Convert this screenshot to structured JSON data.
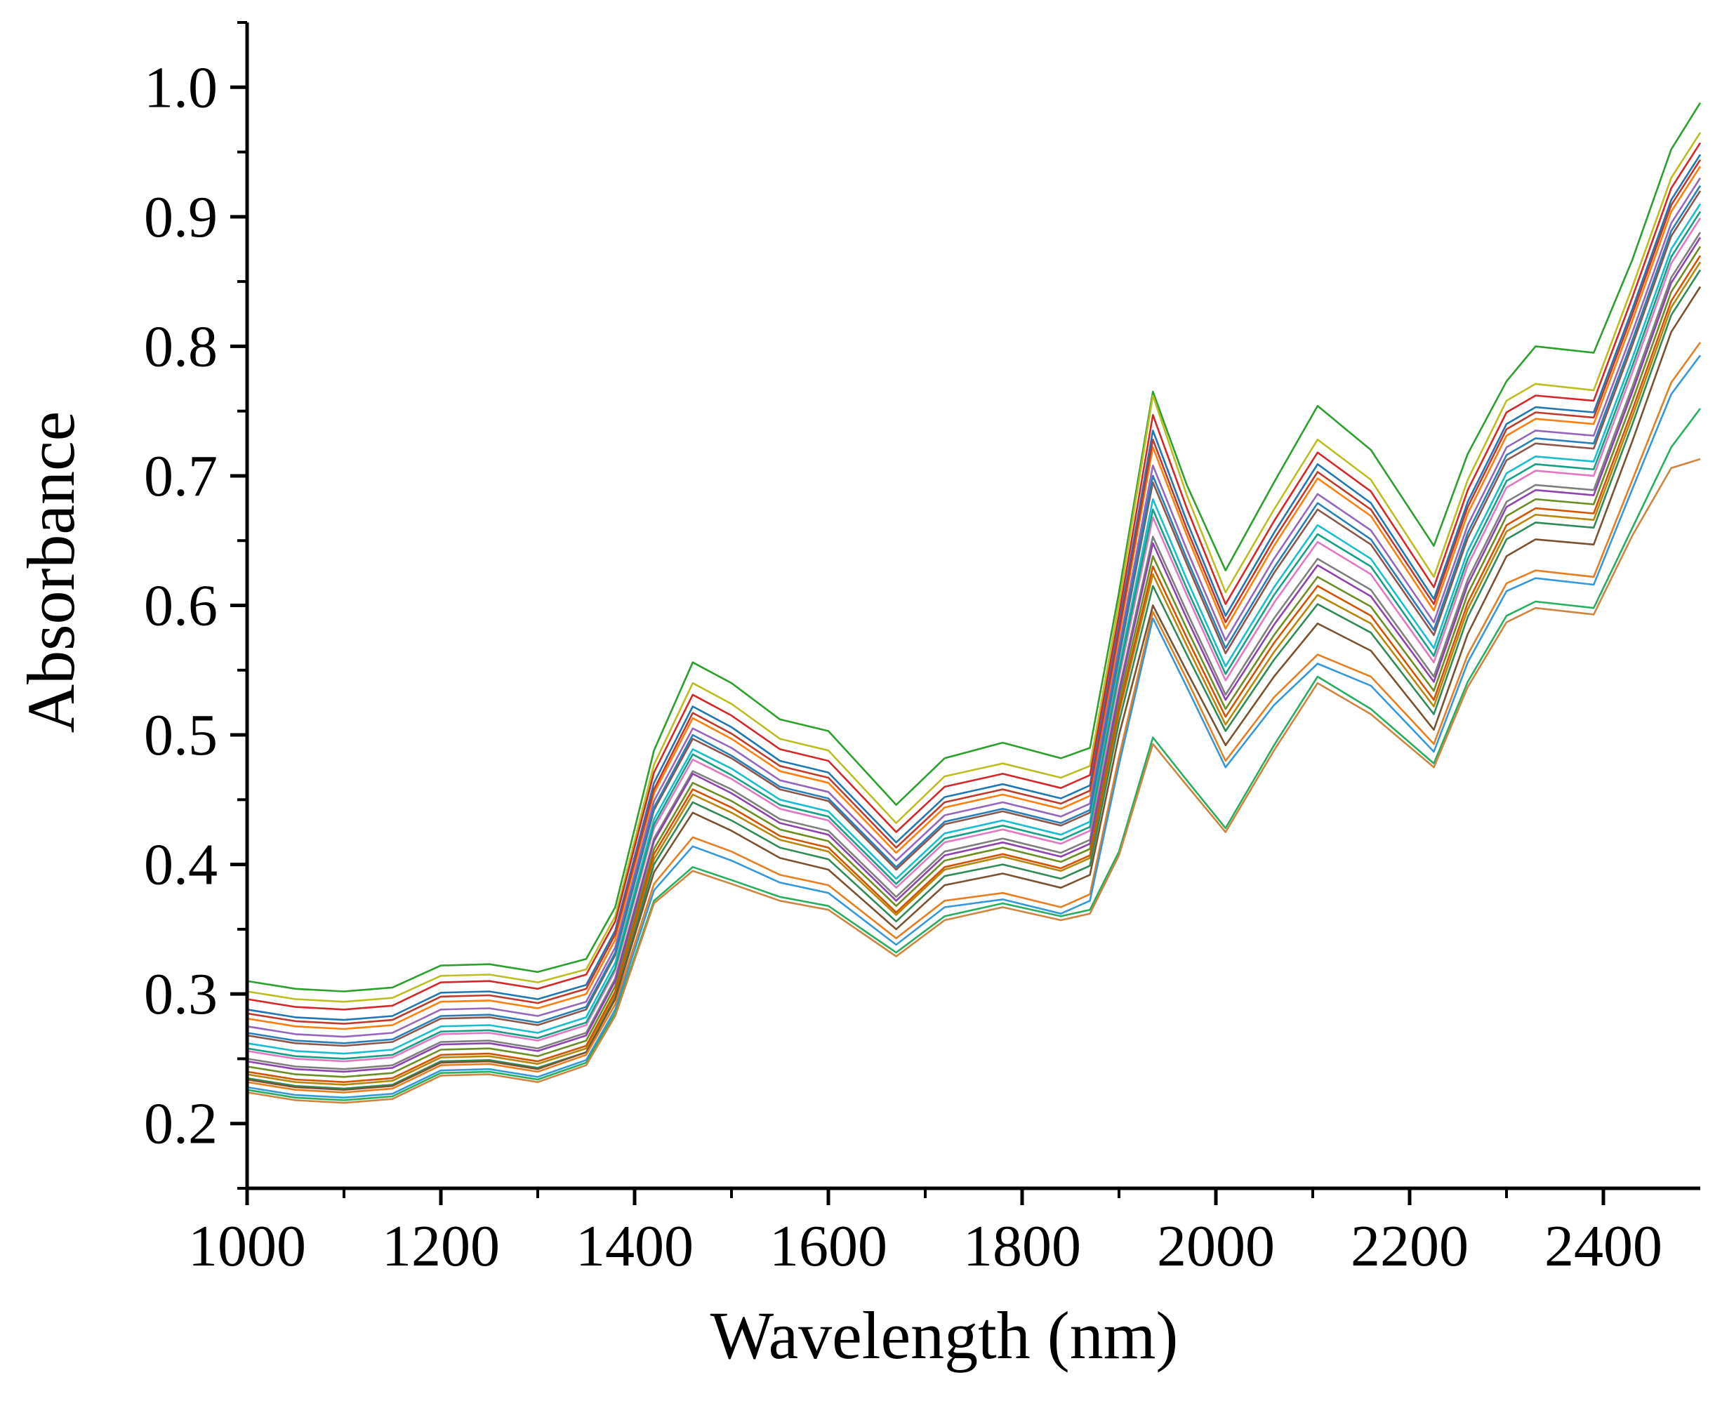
{
  "chart_data": {
    "type": "line",
    "xlabel": "Wavelength (nm)",
    "ylabel": "Absorbance",
    "xlim": [
      1000,
      2500
    ],
    "ylim": [
      0.15,
      1.05
    ],
    "x_ticks": [
      "1000",
      "1200",
      "1400",
      "1600",
      "1800",
      "2000",
      "2200",
      "2400"
    ],
    "y_ticks": [
      "0.2",
      "0.3",
      "0.4",
      "0.5",
      "0.6",
      "0.7",
      "0.8",
      "0.9",
      "1.0"
    ],
    "grid": false,
    "legend": "none",
    "x": [
      1000,
      1050,
      1100,
      1150,
      1200,
      1250,
      1300,
      1350,
      1380,
      1420,
      1460,
      1500,
      1550,
      1600,
      1670,
      1720,
      1780,
      1840,
      1870,
      1900,
      1935,
      1970,
      2010,
      2060,
      2105,
      2160,
      2225,
      2260,
      2300,
      2330,
      2390,
      2430,
      2470,
      2500
    ],
    "series": [
      {
        "values": [
          0.31,
          0.304,
          0.302,
          0.305,
          0.322,
          0.323,
          0.317,
          0.327,
          0.367,
          0.488,
          0.556,
          0.54,
          0.512,
          0.503,
          0.446,
          0.482,
          0.494,
          0.482,
          0.49,
          0.61,
          0.765,
          0.693,
          0.627,
          0.695,
          0.754,
          0.72,
          0.646,
          0.717,
          0.773,
          0.8,
          0.795,
          0.867,
          0.952,
          0.988
        ]
      },
      {
        "values": [
          0.302,
          0.296,
          0.294,
          0.297,
          0.314,
          0.315,
          0.309,
          0.319,
          0.36,
          0.477,
          0.54,
          0.524,
          0.497,
          0.488,
          0.432,
          0.468,
          0.478,
          0.467,
          0.476,
          0.602,
          0.762,
          0.685,
          0.61,
          0.674,
          0.728,
          0.697,
          0.622,
          0.697,
          0.758,
          0.771,
          0.766,
          0.846,
          0.93,
          0.965
        ]
      },
      {
        "values": [
          0.296,
          0.29,
          0.288,
          0.291,
          0.309,
          0.31,
          0.304,
          0.315,
          0.356,
          0.471,
          0.531,
          0.515,
          0.489,
          0.48,
          0.425,
          0.46,
          0.47,
          0.459,
          0.469,
          0.593,
          0.747,
          0.675,
          0.601,
          0.665,
          0.718,
          0.688,
          0.614,
          0.689,
          0.749,
          0.762,
          0.758,
          0.838,
          0.922,
          0.957
        ]
      },
      {
        "values": [
          0.288,
          0.282,
          0.28,
          0.283,
          0.301,
          0.302,
          0.296,
          0.307,
          0.349,
          0.463,
          0.522,
          0.506,
          0.48,
          0.471,
          0.417,
          0.452,
          0.462,
          0.451,
          0.461,
          0.585,
          0.735,
          0.665,
          0.592,
          0.656,
          0.709,
          0.679,
          0.605,
          0.68,
          0.74,
          0.753,
          0.749,
          0.829,
          0.913,
          0.948
        ]
      },
      {
        "values": [
          0.281,
          0.275,
          0.273,
          0.276,
          0.294,
          0.295,
          0.289,
          0.3,
          0.342,
          0.455,
          0.513,
          0.497,
          0.472,
          0.463,
          0.409,
          0.444,
          0.454,
          0.443,
          0.453,
          0.576,
          0.722,
          0.654,
          0.582,
          0.646,
          0.698,
          0.669,
          0.596,
          0.671,
          0.731,
          0.744,
          0.74,
          0.82,
          0.904,
          0.939
        ]
      },
      {
        "values": [
          0.275,
          0.269,
          0.267,
          0.27,
          0.288,
          0.289,
          0.283,
          0.294,
          0.336,
          0.449,
          0.505,
          0.49,
          0.465,
          0.456,
          0.403,
          0.438,
          0.448,
          0.437,
          0.447,
          0.568,
          0.708,
          0.643,
          0.573,
          0.636,
          0.686,
          0.658,
          0.587,
          0.662,
          0.722,
          0.735,
          0.731,
          0.811,
          0.895,
          0.93
        ]
      },
      {
        "values": [
          0.268,
          0.262,
          0.26,
          0.263,
          0.281,
          0.282,
          0.276,
          0.288,
          0.33,
          0.442,
          0.497,
          0.482,
          0.458,
          0.449,
          0.396,
          0.431,
          0.441,
          0.43,
          0.44,
          0.56,
          0.695,
          0.632,
          0.563,
          0.625,
          0.674,
          0.647,
          0.577,
          0.652,
          0.712,
          0.725,
          0.721,
          0.801,
          0.885,
          0.92
        ]
      },
      {
        "values": [
          0.262,
          0.256,
          0.254,
          0.257,
          0.275,
          0.276,
          0.27,
          0.282,
          0.324,
          0.435,
          0.489,
          0.474,
          0.45,
          0.441,
          0.389,
          0.424,
          0.434,
          0.423,
          0.433,
          0.552,
          0.682,
          0.62,
          0.553,
          0.614,
          0.662,
          0.636,
          0.567,
          0.642,
          0.702,
          0.715,
          0.711,
          0.791,
          0.875,
          0.91
        ]
      },
      {
        "values": [
          0.256,
          0.25,
          0.248,
          0.251,
          0.269,
          0.27,
          0.264,
          0.276,
          0.318,
          0.428,
          0.481,
          0.466,
          0.443,
          0.434,
          0.382,
          0.417,
          0.427,
          0.416,
          0.426,
          0.544,
          0.668,
          0.608,
          0.542,
          0.602,
          0.649,
          0.624,
          0.556,
          0.631,
          0.691,
          0.704,
          0.7,
          0.78,
          0.864,
          0.899
        ]
      },
      {
        "values": [
          0.25,
          0.244,
          0.242,
          0.245,
          0.263,
          0.264,
          0.258,
          0.27,
          0.312,
          0.42,
          0.472,
          0.458,
          0.435,
          0.426,
          0.375,
          0.41,
          0.42,
          0.409,
          0.419,
          0.535,
          0.653,
          0.595,
          0.531,
          0.59,
          0.636,
          0.612,
          0.545,
          0.62,
          0.68,
          0.693,
          0.689,
          0.769,
          0.853,
          0.888
        ]
      },
      {
        "values": [
          0.244,
          0.238,
          0.236,
          0.239,
          0.257,
          0.258,
          0.252,
          0.264,
          0.306,
          0.412,
          0.463,
          0.449,
          0.427,
          0.418,
          0.368,
          0.403,
          0.413,
          0.402,
          0.412,
          0.526,
          0.638,
          0.582,
          0.52,
          0.577,
          0.622,
          0.599,
          0.534,
          0.609,
          0.669,
          0.682,
          0.678,
          0.758,
          0.842,
          0.877
        ]
      },
      {
        "values": [
          0.238,
          0.232,
          0.23,
          0.233,
          0.251,
          0.252,
          0.246,
          0.258,
          0.3,
          0.404,
          0.454,
          0.44,
          0.419,
          0.41,
          0.361,
          0.396,
          0.406,
          0.395,
          0.405,
          0.517,
          0.624,
          0.569,
          0.508,
          0.564,
          0.608,
          0.586,
          0.522,
          0.597,
          0.657,
          0.67,
          0.666,
          0.746,
          0.83,
          0.865
        ]
      },
      {
        "values": [
          0.285,
          0.279,
          0.277,
          0.28,
          0.298,
          0.299,
          0.293,
          0.304,
          0.346,
          0.458,
          0.517,
          0.501,
          0.476,
          0.467,
          0.413,
          0.448,
          0.458,
          0.447,
          0.457,
          0.58,
          0.728,
          0.659,
          0.587,
          0.651,
          0.703,
          0.674,
          0.601,
          0.676,
          0.736,
          0.749,
          0.745,
          0.825,
          0.909,
          0.944
        ]
      },
      {
        "values": [
          0.27,
          0.264,
          0.262,
          0.265,
          0.283,
          0.284,
          0.278,
          0.29,
          0.332,
          0.444,
          0.5,
          0.484,
          0.46,
          0.451,
          0.398,
          0.433,
          0.443,
          0.432,
          0.442,
          0.563,
          0.7,
          0.636,
          0.567,
          0.629,
          0.679,
          0.651,
          0.581,
          0.656,
          0.716,
          0.729,
          0.725,
          0.805,
          0.889,
          0.924
        ]
      },
      {
        "values": [
          0.258,
          0.252,
          0.25,
          0.253,
          0.271,
          0.272,
          0.266,
          0.278,
          0.32,
          0.431,
          0.485,
          0.469,
          0.446,
          0.437,
          0.385,
          0.42,
          0.43,
          0.419,
          0.429,
          0.548,
          0.674,
          0.613,
          0.547,
          0.608,
          0.655,
          0.63,
          0.561,
          0.636,
          0.696,
          0.709,
          0.705,
          0.785,
          0.869,
          0.904
        ]
      },
      {
        "values": [
          0.248,
          0.242,
          0.24,
          0.243,
          0.261,
          0.262,
          0.256,
          0.268,
          0.31,
          0.418,
          0.47,
          0.455,
          0.432,
          0.423,
          0.372,
          0.407,
          0.417,
          0.406,
          0.416,
          0.532,
          0.648,
          0.59,
          0.527,
          0.585,
          0.631,
          0.607,
          0.541,
          0.616,
          0.676,
          0.689,
          0.685,
          0.765,
          0.849,
          0.884
        ]
      },
      {
        "values": [
          0.24,
          0.234,
          0.232,
          0.235,
          0.253,
          0.254,
          0.248,
          0.26,
          0.302,
          0.408,
          0.458,
          0.444,
          0.422,
          0.413,
          0.363,
          0.398,
          0.408,
          0.397,
          0.407,
          0.52,
          0.63,
          0.575,
          0.514,
          0.571,
          0.615,
          0.592,
          0.527,
          0.602,
          0.662,
          0.675,
          0.671,
          0.751,
          0.835,
          0.87
        ]
      },
      {
        "values": [
          0.235,
          0.229,
          0.227,
          0.23,
          0.248,
          0.249,
          0.243,
          0.255,
          0.297,
          0.4,
          0.448,
          0.434,
          0.413,
          0.404,
          0.356,
          0.391,
          0.4,
          0.389,
          0.399,
          0.51,
          0.615,
          0.562,
          0.503,
          0.558,
          0.601,
          0.579,
          0.516,
          0.591,
          0.651,
          0.664,
          0.66,
          0.74,
          0.824,
          0.859
        ]
      },
      {
        "values": [
          0.234,
          0.228,
          0.226,
          0.229,
          0.247,
          0.248,
          0.242,
          0.255,
          0.296,
          0.394,
          0.44,
          0.426,
          0.405,
          0.396,
          0.35,
          0.384,
          0.393,
          0.382,
          0.392,
          0.5,
          0.6,
          0.549,
          0.492,
          0.545,
          0.586,
          0.565,
          0.504,
          0.578,
          0.638,
          0.651,
          0.647,
          0.727,
          0.811,
          0.846
        ]
      },
      {
        "values": [
          0.232,
          0.226,
          0.224,
          0.227,
          0.245,
          0.246,
          0.24,
          0.253,
          0.292,
          0.385,
          0.421,
          0.41,
          0.392,
          0.384,
          0.343,
          0.372,
          0.378,
          0.367,
          0.377,
          0.483,
          0.595,
          0.543,
          0.48,
          0.529,
          0.562,
          0.545,
          0.493,
          0.562,
          0.617,
          0.627,
          0.622,
          0.697,
          0.772,
          0.803
        ]
      },
      {
        "values": [
          0.228,
          0.222,
          0.22,
          0.223,
          0.241,
          0.242,
          0.236,
          0.249,
          0.288,
          0.38,
          0.414,
          0.403,
          0.386,
          0.378,
          0.338,
          0.367,
          0.373,
          0.362,
          0.372,
          0.477,
          0.59,
          0.537,
          0.475,
          0.523,
          0.555,
          0.538,
          0.487,
          0.556,
          0.611,
          0.621,
          0.616,
          0.69,
          0.763,
          0.793
        ]
      },
      {
        "values": [
          0.226,
          0.22,
          0.218,
          0.221,
          0.239,
          0.24,
          0.234,
          0.247,
          0.285,
          0.372,
          0.398,
          0.388,
          0.375,
          0.368,
          0.332,
          0.36,
          0.37,
          0.36,
          0.365,
          0.41,
          0.498,
          0.465,
          0.428,
          0.492,
          0.545,
          0.52,
          0.478,
          0.541,
          0.592,
          0.603,
          0.598,
          0.66,
          0.722,
          0.752
        ]
      },
      {
        "values": [
          0.224,
          0.218,
          0.216,
          0.219,
          0.237,
          0.238,
          0.232,
          0.245,
          0.283,
          0.37,
          0.395,
          0.385,
          0.372,
          0.365,
          0.329,
          0.357,
          0.367,
          0.357,
          0.362,
          0.407,
          0.493,
          0.461,
          0.425,
          0.488,
          0.54,
          0.516,
          0.475,
          0.537,
          0.587,
          0.598,
          0.593,
          0.654,
          0.706,
          0.713
        ]
      }
    ]
  }
}
